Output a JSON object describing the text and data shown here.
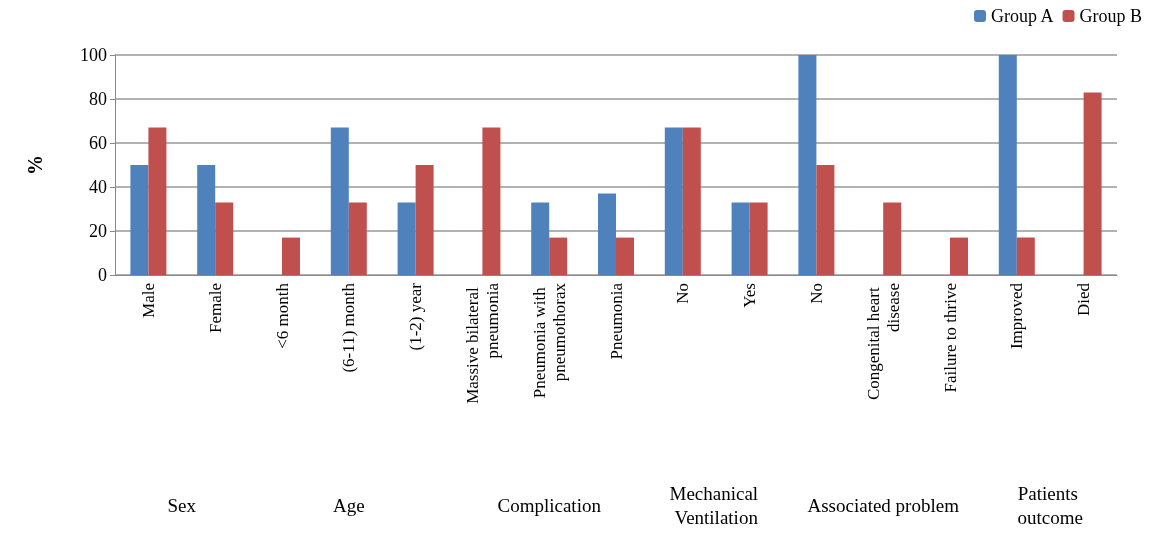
{
  "chart_data": {
    "type": "bar",
    "ylabel": "%",
    "categories": [
      "Male",
      "Female",
      "<6 month",
      "(6-11) month",
      "(1-2) year",
      "Massive bilateral pneumonia",
      "Pneumonia with pneumothorax",
      "Pneumonia",
      "No",
      "Yes",
      "No",
      "Congenital heart disease",
      "Failure to thrive",
      "Improved",
      "Died"
    ],
    "series": [
      {
        "name": "Group A",
        "color": "#4f81bd",
        "values": [
          50,
          50,
          0,
          67,
          33,
          0,
          33,
          37,
          67,
          33,
          100,
          0,
          0,
          100,
          0
        ]
      },
      {
        "name": "Group B",
        "color": "#c0504d",
        "values": [
          67,
          33,
          17,
          33,
          50,
          67,
          17,
          17,
          67,
          33,
          50,
          33,
          17,
          17,
          83
        ]
      }
    ],
    "annotations": [
      "Sex",
      "Age",
      "Complication",
      "Mechanical Ventilation",
      "Associated problem",
      "Patients outcome"
    ],
    "ylim": [
      0,
      100
    ],
    "yticks": [
      0,
      20,
      40,
      60,
      80,
      100
    ],
    "grid": "y",
    "legend": "top right"
  }
}
